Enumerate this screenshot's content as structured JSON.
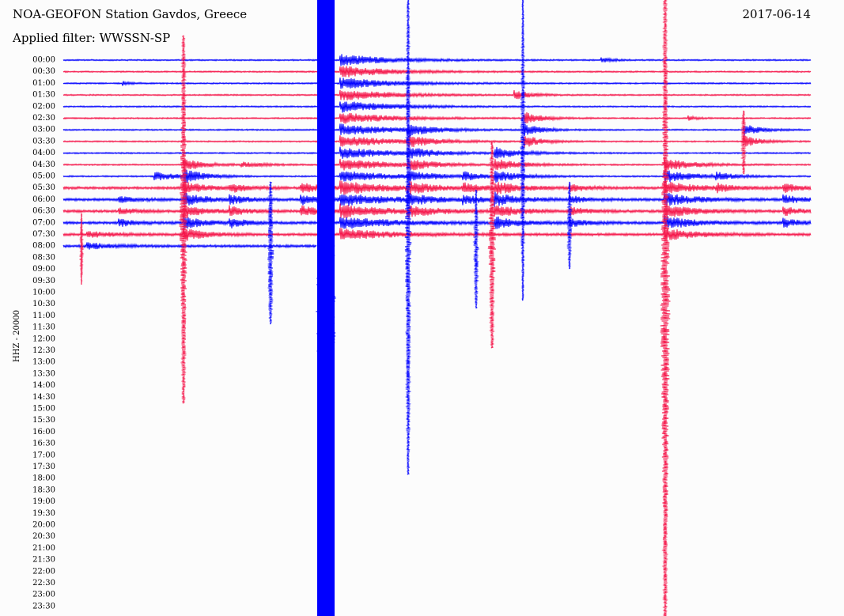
{
  "header": {
    "title": "NOA-GEOFON Station Gavdos, Greece",
    "date": "2017-06-14",
    "filter": "Applied filter: WWSSN-SP"
  },
  "axis": {
    "label": "HHZ - 20000",
    "times": [
      "00:00",
      "00:30",
      "01:00",
      "01:30",
      "02:00",
      "02:30",
      "03:00",
      "03:30",
      "04:00",
      "04:30",
      "05:00",
      "05:30",
      "06:00",
      "06:30",
      "07:00",
      "07:30",
      "08:00",
      "08:30",
      "09:00",
      "09:30",
      "10:00",
      "10:30",
      "11:00",
      "11:30",
      "12:00",
      "12:30",
      "13:00",
      "13:30",
      "14:00",
      "14:30",
      "15:00",
      "15:30",
      "16:00",
      "16:30",
      "17:00",
      "17:30",
      "18:00",
      "18:30",
      "19:00",
      "19:30",
      "20:00",
      "20:30",
      "21:00",
      "21:30",
      "22:00",
      "22:30",
      "23:00",
      "23:30"
    ]
  }
}
